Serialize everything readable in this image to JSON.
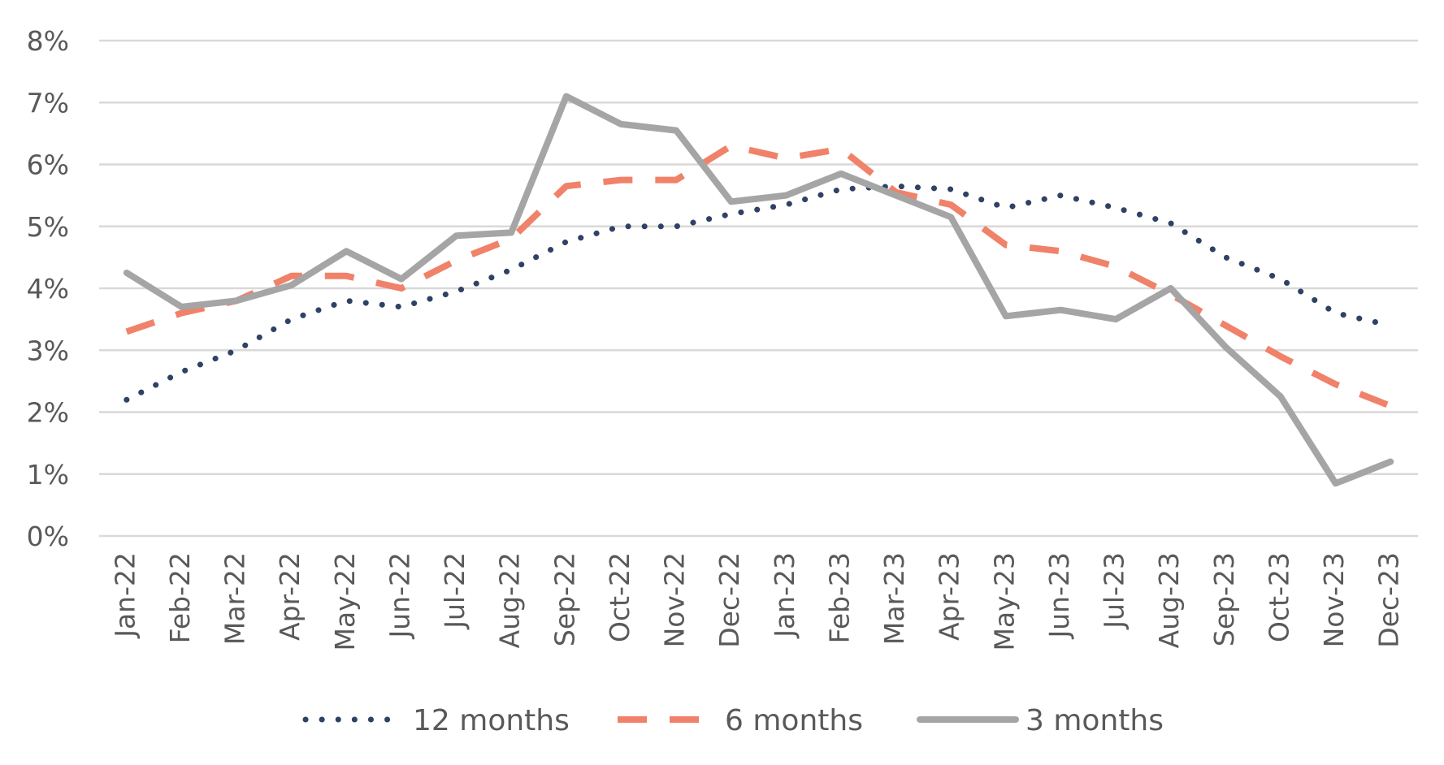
{
  "chart_data": {
    "type": "line",
    "categories": [
      "Jan-22",
      "Feb-22",
      "Mar-22",
      "Apr-22",
      "May-22",
      "Jun-22",
      "Jul-22",
      "Aug-22",
      "Sep-22",
      "Oct-22",
      "Nov-22",
      "Dec-22",
      "Jan-23",
      "Feb-23",
      "Mar-23",
      "Apr-23",
      "May-23",
      "Jun-23",
      "Jul-23",
      "Aug-23",
      "Sep-23",
      "Oct-23",
      "Nov-23",
      "Dec-23"
    ],
    "y_ticks": [
      "0%",
      "1%",
      "2%",
      "3%",
      "4%",
      "5%",
      "6%",
      "7%",
      "8%"
    ],
    "ylim": [
      0,
      8
    ],
    "grid": true,
    "legend_position": "bottom",
    "series": [
      {
        "name": "12 months",
        "style": "dotted",
        "color": "#2e4265",
        "values": [
          2.2,
          2.65,
          3.0,
          3.5,
          3.8,
          3.7,
          3.95,
          4.3,
          4.75,
          5.0,
          5.0,
          5.2,
          5.35,
          5.6,
          5.65,
          5.6,
          5.3,
          5.5,
          5.3,
          5.05,
          4.5,
          4.15,
          3.6,
          3.4
        ]
      },
      {
        "name": "6 months",
        "style": "dashed",
        "color": "#f0826a",
        "values": [
          3.3,
          3.6,
          3.8,
          4.2,
          4.2,
          4.0,
          4.45,
          4.8,
          5.65,
          5.75,
          5.75,
          6.3,
          6.1,
          6.25,
          5.55,
          5.35,
          4.7,
          4.6,
          4.35,
          3.9,
          3.4,
          2.9,
          2.45,
          2.1
        ]
      },
      {
        "name": "3 months",
        "style": "solid",
        "color": "#a5a5a5",
        "values": [
          4.25,
          3.7,
          3.8,
          4.05,
          4.6,
          4.15,
          4.85,
          4.9,
          7.1,
          6.65,
          6.55,
          5.4,
          5.5,
          5.85,
          5.5,
          5.15,
          3.55,
          3.65,
          3.5,
          4.0,
          3.05,
          2.25,
          0.85,
          1.2
        ]
      }
    ]
  }
}
